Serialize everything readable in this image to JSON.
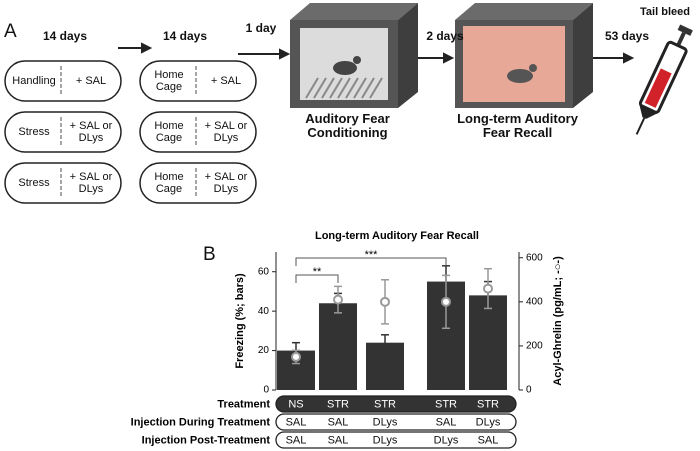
{
  "panel_a": {
    "label": "A",
    "durations": [
      "14 days",
      "14 days",
      "1 day",
      "2 days",
      "53 days"
    ],
    "stages": [
      "Auditory Fear\nConditioning",
      "Long-term Auditory\nFear Recall"
    ],
    "tail_bleed": "Tail bleed",
    "protocol": [
      [
        {
          "condition": "Handling",
          "injection": "+ SAL"
        },
        {
          "condition": "Home\nCage",
          "injection": "+ SAL"
        }
      ],
      [
        {
          "condition": "Stress",
          "injection": "+ SAL or\nDLys"
        },
        {
          "condition": "Home\nCage",
          "injection": "+ SAL or\nDLys"
        }
      ],
      [
        {
          "condition": "Stress",
          "injection": "+ SAL or\nDLys"
        },
        {
          "condition": "Home\nCage",
          "injection": "+ SAL or\nDLys"
        }
      ]
    ]
  },
  "chart_data": {
    "type": "bar",
    "panel_label": "B",
    "title": "Long-term Auditory Fear Recall",
    "y_label": "Freezing (%; bars)",
    "y2_label": "Acyl-Ghrelin (pg/mL; -○-)",
    "categories": [
      null,
      null,
      null,
      null,
      null
    ],
    "series": [
      {
        "values": [
          20,
          44,
          24,
          55,
          48
        ],
        "errors": [
          4,
          5,
          4,
          8,
          7
        ],
        "color": "#333333"
      },
      {
        "axis": "y2",
        "values": [
          150,
          410,
          400,
          400,
          460
        ],
        "errors": [
          30,
          60,
          100,
          120,
          90
        ],
        "color": "#999999"
      }
    ],
    "ylim": [
      0,
      70
    ],
    "yticks": [
      0,
      20,
      40,
      60
    ],
    "y2lim": [
      0,
      626
    ],
    "y2ticks": [
      0,
      200,
      400,
      600
    ],
    "annotations": [
      "**",
      "***"
    ]
  },
  "table": {
    "row_labels": [
      "Treatment",
      "Injection During Treatment",
      "Injection Post-Treatment"
    ],
    "rows": [
      [
        "NS",
        "STR",
        "STR",
        "STR",
        "STR"
      ],
      [
        "SAL",
        "SAL",
        "DLys",
        "SAL",
        "DLys"
      ],
      [
        "SAL",
        "SAL",
        "DLys",
        "DLys",
        "SAL"
      ]
    ]
  }
}
